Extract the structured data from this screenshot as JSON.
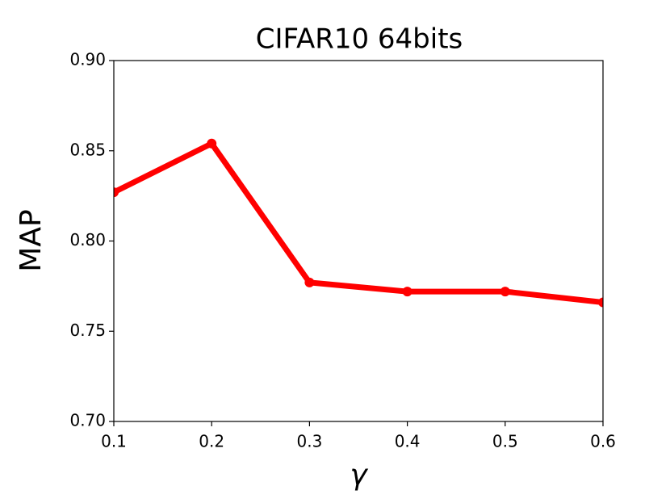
{
  "chart_data": {
    "type": "line",
    "title": "CIFAR10 64bits",
    "x_label": "γ",
    "y_label": "MAP",
    "x": [
      0.1,
      0.2,
      0.3,
      0.4,
      0.5,
      0.6
    ],
    "series": [
      {
        "color": "#ff0000",
        "values": [
          0.827,
          0.854,
          0.777,
          0.772,
          0.772,
          0.766
        ]
      }
    ],
    "xlim": [
      0.1,
      0.6
    ],
    "xticks": [
      0.1,
      0.2,
      0.3,
      0.4,
      0.5,
      0.6
    ],
    "ylim": [
      0.7,
      0.9
    ],
    "yticks": [
      {
        "value": 0.7,
        "label": "0.70"
      },
      0.75,
      {
        "value": 0.8,
        "label": "0.80"
      },
      0.85,
      {
        "value": 0.9,
        "label": "0.90"
      }
    ],
    "grid": false
  }
}
